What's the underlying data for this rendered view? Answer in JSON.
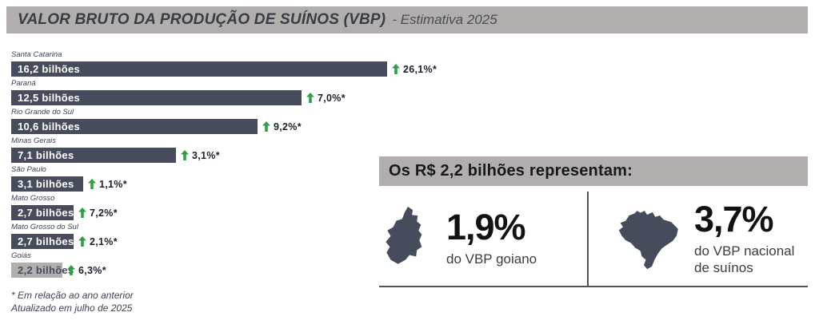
{
  "page": {
    "title": "VALOR BRUTO DA PRODUÇÃO DE SUÍNOS (VBP)",
    "subtitle": "- Estimativa 2025"
  },
  "chart_data": {
    "type": "bar",
    "orientation": "horizontal",
    "title": "VALOR BRUTO DA PRODUÇÃO DE SUÍNOS (VBP) - Estimativa 2025",
    "unit": "R$ bilhões",
    "categories": [
      "Santa Catarina",
      "Paraná",
      "Rio Grande do Sul",
      "Minas Gerais",
      "São Paulo",
      "Mato Grosso",
      "Mato Grosso do Sul",
      "Goiás"
    ],
    "values": [
      16.2,
      12.5,
      10.6,
      7.1,
      3.1,
      2.7,
      2.7,
      2.2
    ],
    "value_labels": [
      "16,2 bilhões",
      "12,5 bilhões",
      "10,6 bilhões",
      "7,1 bilhões",
      "3,1 bilhões",
      "2,7 bilhões",
      "2,7 bilhões",
      "2,2 bilhões"
    ],
    "change_labels": [
      "26,1%*",
      "7,0%*",
      "9,2%*",
      "3,1%*",
      "1,1%*",
      "7,2%*",
      "2,1%*",
      "6,3%*"
    ],
    "change_direction": "up",
    "highlighted_category": "Goiás",
    "xlim": [
      0,
      16.2
    ],
    "grid": false,
    "legend": false,
    "bar_color": "#474C5C",
    "highlight_bar_color": "#B2AEAE",
    "arrow_color": "#2F9E44"
  },
  "callout": {
    "header": "Os R$ 2,2 bilhões representam:",
    "stats": [
      {
        "icon": "goias-map",
        "value": "1,9%",
        "label": "do VBP goiano"
      },
      {
        "icon": "brazil-map",
        "value": "3,7%",
        "label": "do VBP nacional de suínos"
      }
    ]
  },
  "footnotes": {
    "line1": "* Em relação ao ano anterior",
    "line2": "Atualizado em julho de 2025"
  }
}
